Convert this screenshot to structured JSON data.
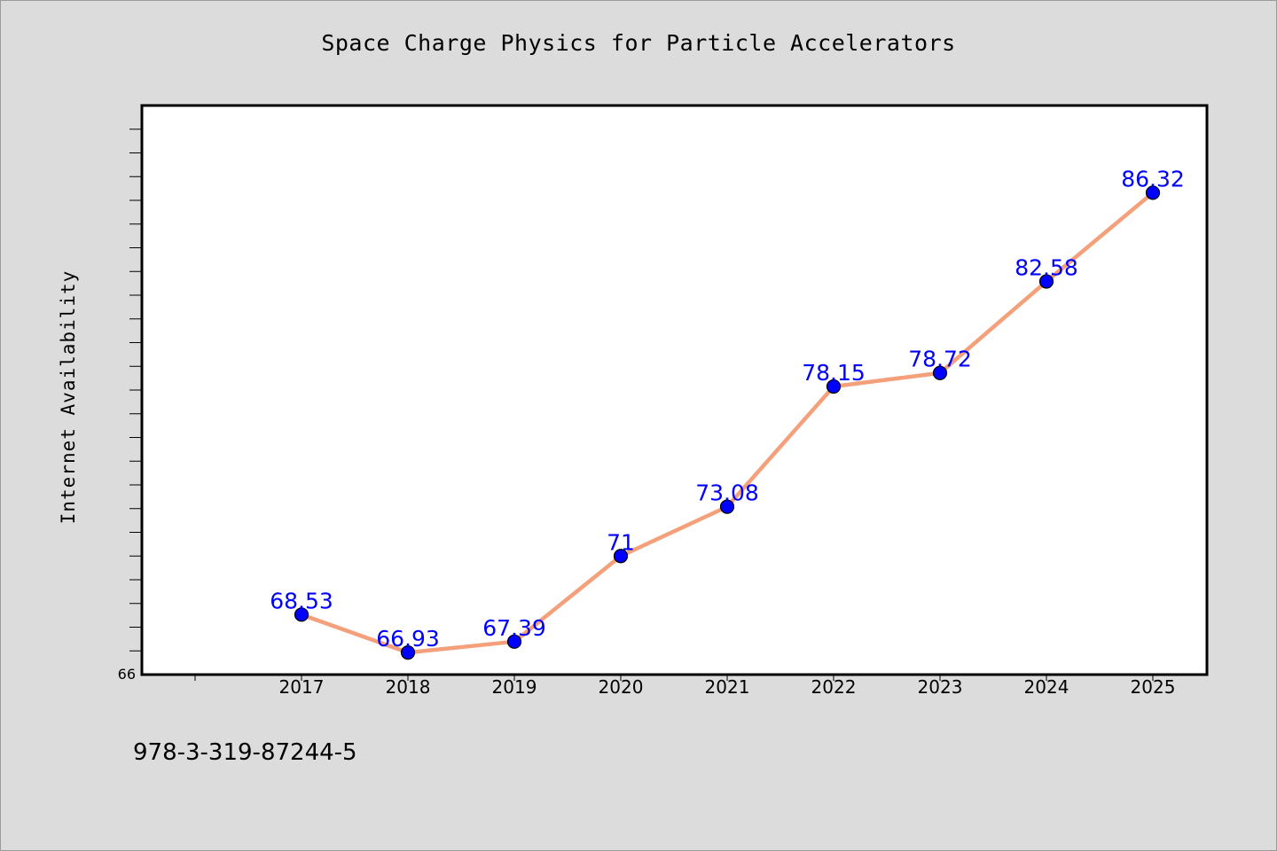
{
  "chart_data": {
    "type": "line",
    "title": "Space Charge Physics for Particle Accelerators",
    "xlabel": "",
    "ylabel": "Internet Availability",
    "categories": [
      "2017",
      "2018",
      "2019",
      "2020",
      "2021",
      "2022",
      "2023",
      "2024",
      "2025"
    ],
    "series": [
      {
        "values": [
          68.53,
          66.93,
          67.39,
          71,
          73.08,
          78.15,
          78.72,
          82.58,
          86.32
        ],
        "labels": [
          "68.53",
          "66.93",
          "67.39",
          "71",
          "73.08",
          "78.15",
          "78.72",
          "82.58",
          "86.32"
        ]
      }
    ],
    "ylim": [
      66,
      90
    ],
    "y_tick_labels": [
      "66"
    ],
    "grid": false,
    "line_color": "#f4a07a",
    "marker_color": "#0000ff",
    "label_color": "#0000ff"
  },
  "footer": {
    "code": "978-3-319-87244-5"
  }
}
